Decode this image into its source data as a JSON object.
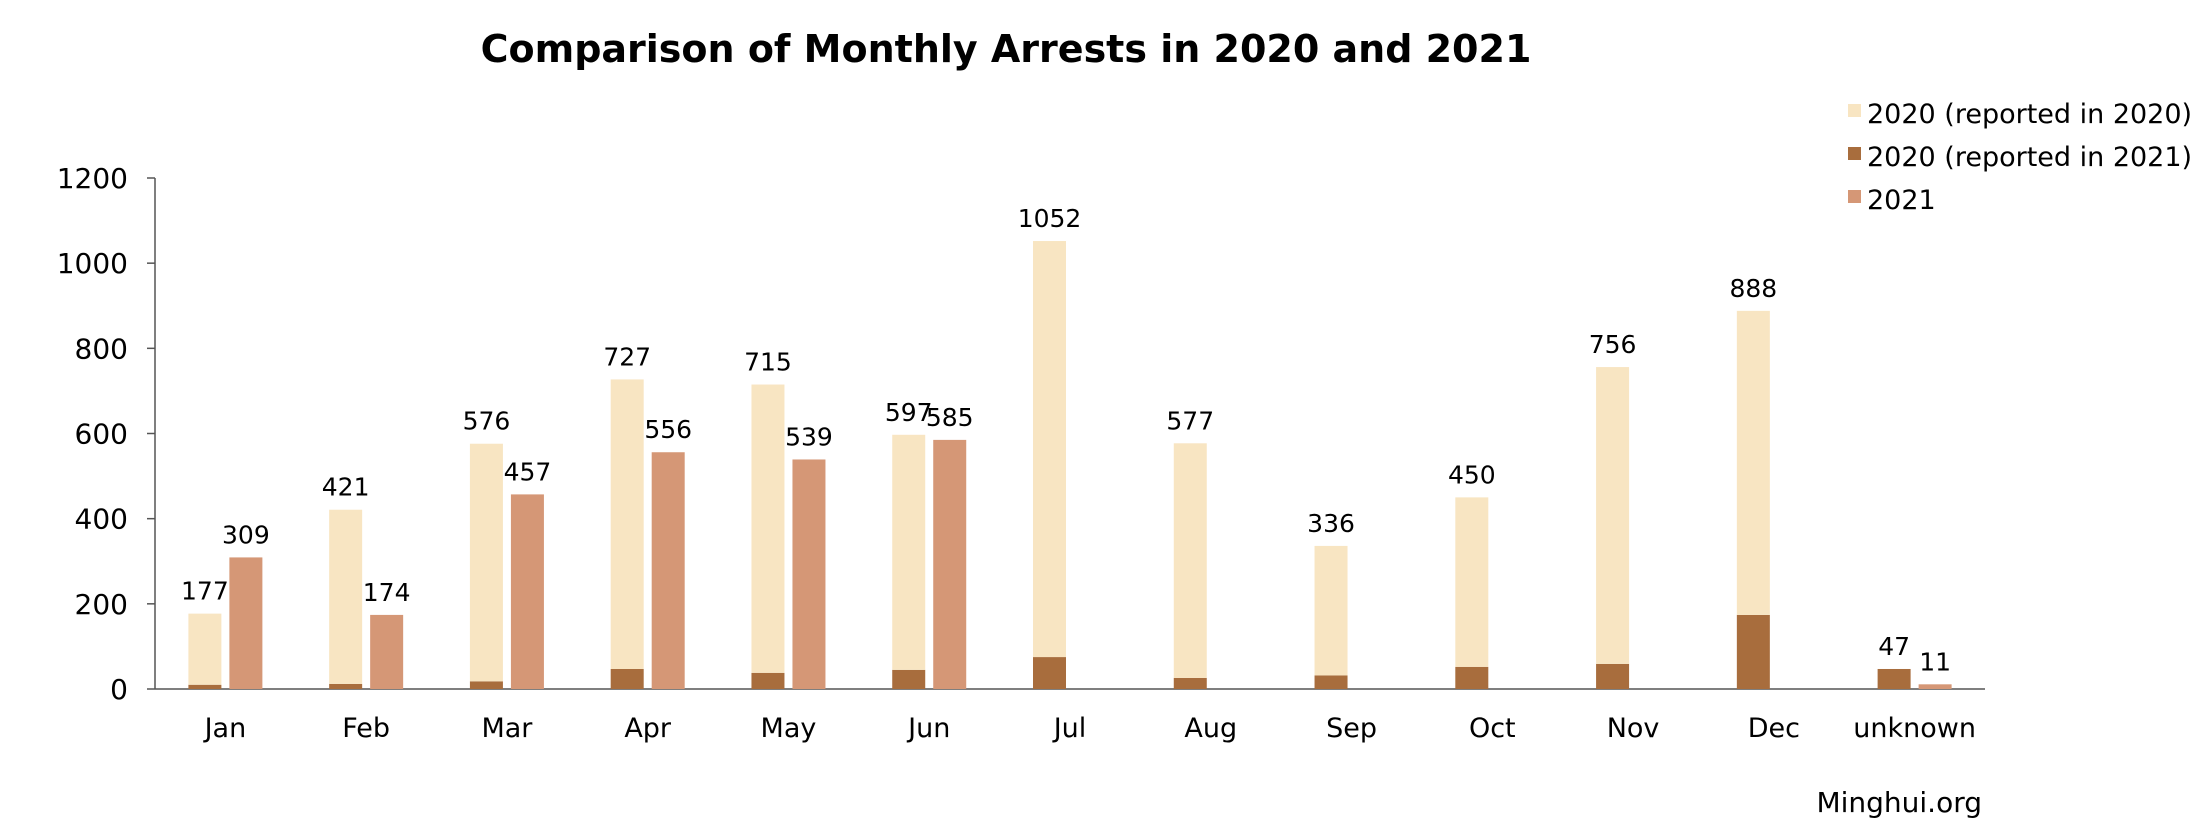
{
  "chart_data": {
    "type": "bar",
    "title": "Comparison of Monthly Arrests in 2020 and 2021",
    "xlabel": "",
    "ylabel": "",
    "ylim": [
      0,
      1200
    ],
    "yticks": [
      0,
      200,
      400,
      600,
      800,
      1000,
      1200
    ],
    "grid": false,
    "legend_position": "top-right",
    "categories": [
      "Jan",
      "Feb",
      "Mar",
      "Apr",
      "May",
      "Jun",
      "Jul",
      "Aug",
      "Sep",
      "Oct",
      "Nov",
      "Dec",
      "unknown"
    ],
    "series": [
      {
        "name": "2020 (reported in 2020)",
        "color": "#F8E5C2",
        "stack": "2020",
        "values": [
          167,
          409,
          558,
          680,
          677,
          552,
          977,
          551,
          304,
          398,
          697,
          714,
          0
        ]
      },
      {
        "name": "2020 (reported in 2021)",
        "color": "#A86D3D",
        "stack": "2020",
        "values": [
          10,
          12,
          18,
          47,
          38,
          45,
          75,
          26,
          32,
          52,
          59,
          174,
          47
        ]
      },
      {
        "name": "2021",
        "color": "#D59776",
        "stack": "2021",
        "values": [
          309,
          174,
          457,
          556,
          539,
          585,
          null,
          null,
          null,
          null,
          null,
          null,
          11
        ]
      }
    ],
    "data_labels": {
      "totals_2020": [
        "177",
        "421",
        "576",
        "727",
        "715",
        "597",
        "1052",
        "577",
        "336",
        "450",
        "756",
        "888",
        "47"
      ],
      "values_2021": [
        "309",
        "174",
        "457",
        "556",
        "539",
        "585",
        "",
        "",
        "",
        "",
        "",
        "",
        "11"
      ]
    },
    "source": "Minghui.org"
  }
}
